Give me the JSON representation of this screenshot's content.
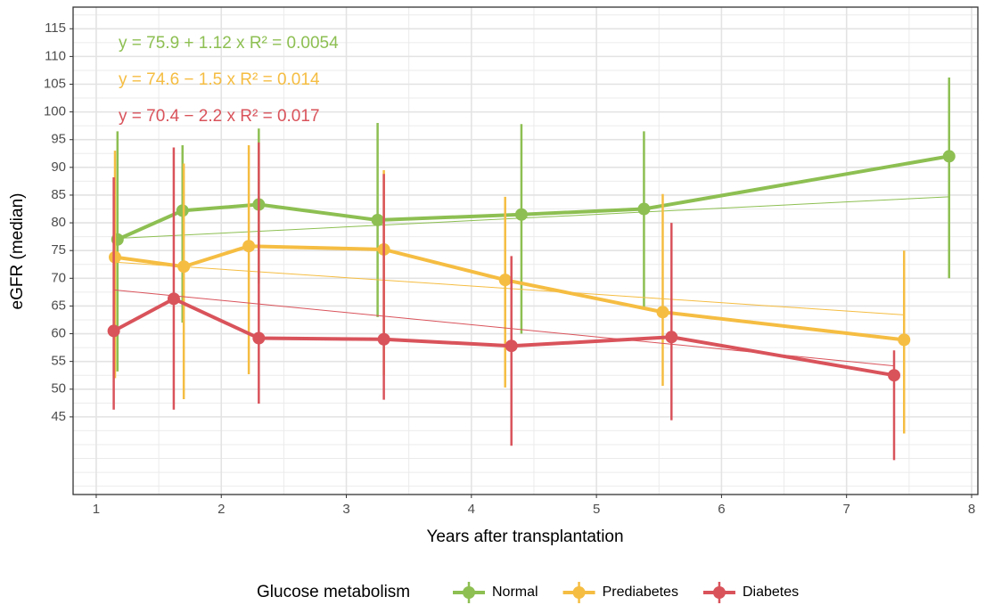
{
  "chart_data": {
    "type": "line",
    "xlabel": "Years after transplantation",
    "ylabel": "eGFR (median)",
    "xlim": [
      0.815,
      8.05
    ],
    "xticks": [
      1,
      2,
      3,
      4,
      5,
      6,
      7,
      8
    ],
    "ylim": [
      31,
      118.9
    ],
    "yticks": [
      45,
      50,
      55,
      60,
      65,
      70,
      75,
      80,
      85,
      90,
      95,
      100,
      105,
      110,
      115
    ],
    "grid": true,
    "legend_title": "Glucose metabolism",
    "legend_position": "bottom",
    "series": [
      {
        "name": "Normal",
        "color": "#8dbf52",
        "x": [
          1.17,
          1.69,
          2.3,
          3.25,
          4.4,
          5.38,
          7.82
        ],
        "values": [
          77,
          82.2,
          83.3,
          80.5,
          81.5,
          82.5,
          92
        ],
        "lower": [
          53.2,
          62,
          69,
          63,
          60,
          64.5,
          70
        ],
        "upper": [
          96.5,
          94,
          97,
          98,
          97.8,
          96.5,
          106.2
        ],
        "trend": {
          "x": [
            1.17,
            7.82
          ],
          "values": [
            77.2,
            84.7
          ]
        },
        "annotation": "y = 75.9 + 1.12 x   R² = 0.0054"
      },
      {
        "name": "Prediabetes",
        "color": "#f5bd42",
        "x": [
          1.15,
          1.7,
          2.22,
          3.3,
          4.27,
          5.53,
          7.46
        ],
        "values": [
          73.8,
          72.1,
          75.8,
          75.2,
          69.7,
          63.9,
          58.9
        ],
        "lower": [
          52,
          48.2,
          52.7,
          52.5,
          50.3,
          50.6,
          42
        ],
        "upper": [
          93,
          90.7,
          94,
          89.5,
          84.7,
          85.2,
          75
        ],
        "trend": {
          "x": [
            1.15,
            7.46
          ],
          "values": [
            72.9,
            63.4
          ]
        },
        "annotation": "y = 74.6 − 1.5 x   R² = 0.014"
      },
      {
        "name": "Diabetes",
        "color": "#d9535b",
        "x": [
          1.14,
          1.62,
          2.3,
          3.3,
          4.32,
          5.6,
          7.38
        ],
        "values": [
          60.5,
          66.3,
          59.2,
          59,
          57.8,
          59.4,
          52.5
        ],
        "lower": [
          46.3,
          46.3,
          47.4,
          48.1,
          39.8,
          44.4,
          37.2
        ],
        "upper": [
          88.2,
          93.6,
          94.5,
          88.8,
          74,
          80,
          57
        ],
        "trend": {
          "x": [
            1.14,
            7.38
          ],
          "values": [
            67.9,
            54.2
          ]
        },
        "annotation": "y = 70.4 − 2.2 x   R² = 0.017"
      }
    ]
  }
}
